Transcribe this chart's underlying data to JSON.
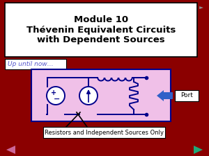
{
  "bg_color": "#8B0000",
  "title_text": "Module 10\nThévenin Equivalent Circuits\nwith Dependent Sources",
  "title_bg": "#FFFFFF",
  "title_border": "#000000",
  "title_fontsize": 9.5,
  "title_font_color": "#000000",
  "subtitle_text": "Up until now…",
  "subtitle_fontsize": 6.5,
  "subtitle_bg": "#FFFFFF",
  "subtitle_border": "#000000",
  "circuit_bg": "#F0C0E8",
  "circuit_border": "#00008B",
  "circuit_line_color": "#00008B",
  "port_arrow_color": "#3060C8",
  "port_text": "Port",
  "port_fontsize": 6.5,
  "callout_text": "Resistors and Independent Sources Only",
  "callout_fontsize": 6,
  "callout_bg": "#FFFFFF",
  "callout_border": "#000000",
  "nav_left_color": "#CC6699",
  "nav_right_color": "#20A878",
  "speaker_color": "#909090"
}
